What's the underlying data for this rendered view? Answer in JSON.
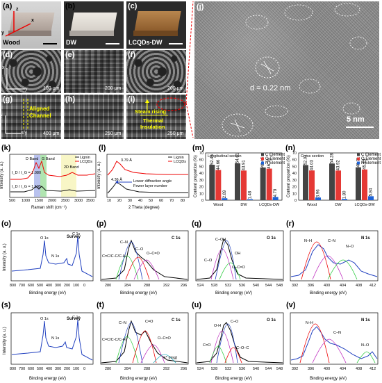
{
  "labels": {
    "a": "(a)",
    "b": "(b)",
    "c": "(c)",
    "d": "(d)",
    "e": "(e)",
    "f": "(f)",
    "g": "(g)",
    "h": "(h)",
    "i": "(i)",
    "j": "(j)",
    "k": "(k)",
    "l": "(l)",
    "m": "(m)",
    "n": "(n)",
    "o": "(o)",
    "p": "(p)",
    "q": "(q)",
    "r": "(r)",
    "s": "(s)",
    "t": "(t)",
    "u": "(u)",
    "v": "(v)"
  },
  "photos": {
    "a": "Wood",
    "b": "DW",
    "c": "LCQDs-DW"
  },
  "axes3d": {
    "z": "z",
    "y": "y",
    "x": "x"
  },
  "sem": {
    "d": {
      "scale": "100 μm",
      "axis_x": "x",
      "axis_y": "y"
    },
    "e": {
      "scale": "200 μm"
    },
    "f": {
      "scale": "200 μm"
    },
    "g": {
      "scale": "400 μm",
      "axis_z": "z",
      "axis_xy": "x/y",
      "annotation_1": "Aligned",
      "annotation_2": "Channel"
    },
    "h": {
      "scale": "250 μm"
    },
    "i": {
      "scale": "250 μm",
      "annotation_1": "Steam rising",
      "annotation_2": "Thermal",
      "annotation_3": "Insulation"
    }
  },
  "tem": {
    "d_spacing": "d = 0.22 nm",
    "scale": "5 nm"
  },
  "panel_k": {
    "ylabel": "Intensity (a. u.)",
    "xlabel": "Raman shift (cm⁻¹)",
    "xticks": [
      "500",
      "1000",
      "1500",
      "2000",
      "2500",
      "3000",
      "3500"
    ],
    "legend": [
      "Lignin",
      "LCQDs"
    ],
    "bands": [
      "D Band",
      "G Band",
      "2D Band"
    ],
    "ratios": [
      "I_D / I_G = 1.080",
      "I_D / I_G = 1.195"
    ]
  },
  "panel_l": {
    "ylabel": "Intensity (a. u.)",
    "xlabel": "2 Theta (degree)",
    "xticks": [
      "10",
      "20",
      "30",
      "40",
      "50",
      "60",
      "70",
      "80"
    ],
    "legend": [
      "Lignin",
      "LCQDs"
    ],
    "peaks": [
      "3.79 Å",
      "4.36 Å"
    ],
    "notes": [
      "Lower diffraction angle",
      "Fewer layer number"
    ]
  },
  "panel_m": {
    "title": "Longitudinal section",
    "ylabel": "Content proportion (%)",
    "legend": [
      "C Element",
      "O Element",
      "N Element"
    ],
    "categories": [
      "Wood",
      "DW",
      "LCQDs-DW"
    ],
    "series": [
      {
        "name": "C Element",
        "values": [
          52.45,
          54.61,
          48.45
        ]
      },
      {
        "name": "O Element",
        "values": [
          44.66,
          43.91,
          46.76
        ]
      },
      {
        "name": "N Element",
        "values": [
          2.89,
          1.48,
          4.79
        ]
      }
    ],
    "yticks": [
      "0",
      "10",
      "20",
      "30",
      "40",
      "50",
      "60",
      "70"
    ]
  },
  "panel_n": {
    "title": "Cross section",
    "ylabel": "Content proportion (%)",
    "legend": [
      "C Element",
      "O Element",
      "N Element"
    ],
    "categories": [
      "Wood",
      "DW",
      "LCQDs-DW"
    ],
    "series": [
      {
        "name": "C Element",
        "values": [
          52.01,
          54.28,
          48.71
        ]
      },
      {
        "name": "O Element",
        "values": [
          44.03,
          43.92,
          45.45
        ]
      },
      {
        "name": "N Element",
        "values": [
          3.96,
          1.8,
          5.84
        ]
      }
    ],
    "yticks": [
      "0",
      "10",
      "20",
      "30",
      "40",
      "50",
      "60",
      "70"
    ]
  },
  "xps": {
    "o": {
      "title": "Survey",
      "xlabel": "Binding energy (eV)",
      "ylabel": "Intensity (a. u.)",
      "xticks": [
        "800",
        "700",
        "600",
        "500",
        "400",
        "300",
        "200",
        "100",
        "0"
      ],
      "peaks": [
        "O 1s",
        "N 1s",
        "C 1s"
      ]
    },
    "p": {
      "title": "C 1s",
      "xlabel": "Binding energy (eV)",
      "xticks": [
        "280",
        "284",
        "288",
        "292",
        "296"
      ],
      "peaks": [
        "C=C/C-C/C-H",
        "C–N",
        "C–O",
        "O–C=O"
      ]
    },
    "q": {
      "title": "O 1s",
      "xlabel": "Binding energy (eV)",
      "xticks": [
        "524",
        "528",
        "532",
        "536",
        "540",
        "544",
        "548"
      ],
      "peaks": [
        "C–OH",
        "OH",
        "C–O",
        "O–C=O"
      ]
    },
    "r": {
      "title": "N 1s",
      "xlabel": "Binding energy (eV)",
      "xticks": [
        "392",
        "396",
        "400",
        "404",
        "408",
        "412"
      ],
      "peaks": [
        "N–H",
        "C–N",
        "N–O"
      ]
    },
    "s": {
      "title": "Survey",
      "xlabel": "Binding energy (eV)",
      "ylabel": "Intensity (a. u.)",
      "xticks": [
        "800",
        "700",
        "600",
        "500",
        "400",
        "300",
        "200",
        "100",
        "0"
      ],
      "peaks": [
        "O 1s",
        "N 1s",
        "C 1s"
      ]
    },
    "t": {
      "title": "C 1s",
      "xlabel": "Binding energy (eV)",
      "xticks": [
        "280",
        "284",
        "288",
        "292",
        "296"
      ],
      "peaks": [
        "C=C/C-C/C-H",
        "C–N",
        "C=O",
        "O–C=O",
        "π* (ring)"
      ]
    },
    "u": {
      "title": "O 1s",
      "xlabel": "Binding energy (eV)",
      "xticks": [
        "524",
        "528",
        "532",
        "536",
        "540",
        "544",
        "548"
      ],
      "peaks": [
        "O-H",
        "C–O",
        "C=O",
        "C–O–C"
      ]
    },
    "v": {
      "title": "N 1s",
      "xlabel": "Binding energy (eV)",
      "xticks": [
        "392",
        "396",
        "400",
        "404",
        "408",
        "412"
      ],
      "peaks": [
        "N–H",
        "C–N",
        "N–O"
      ]
    }
  }
}
